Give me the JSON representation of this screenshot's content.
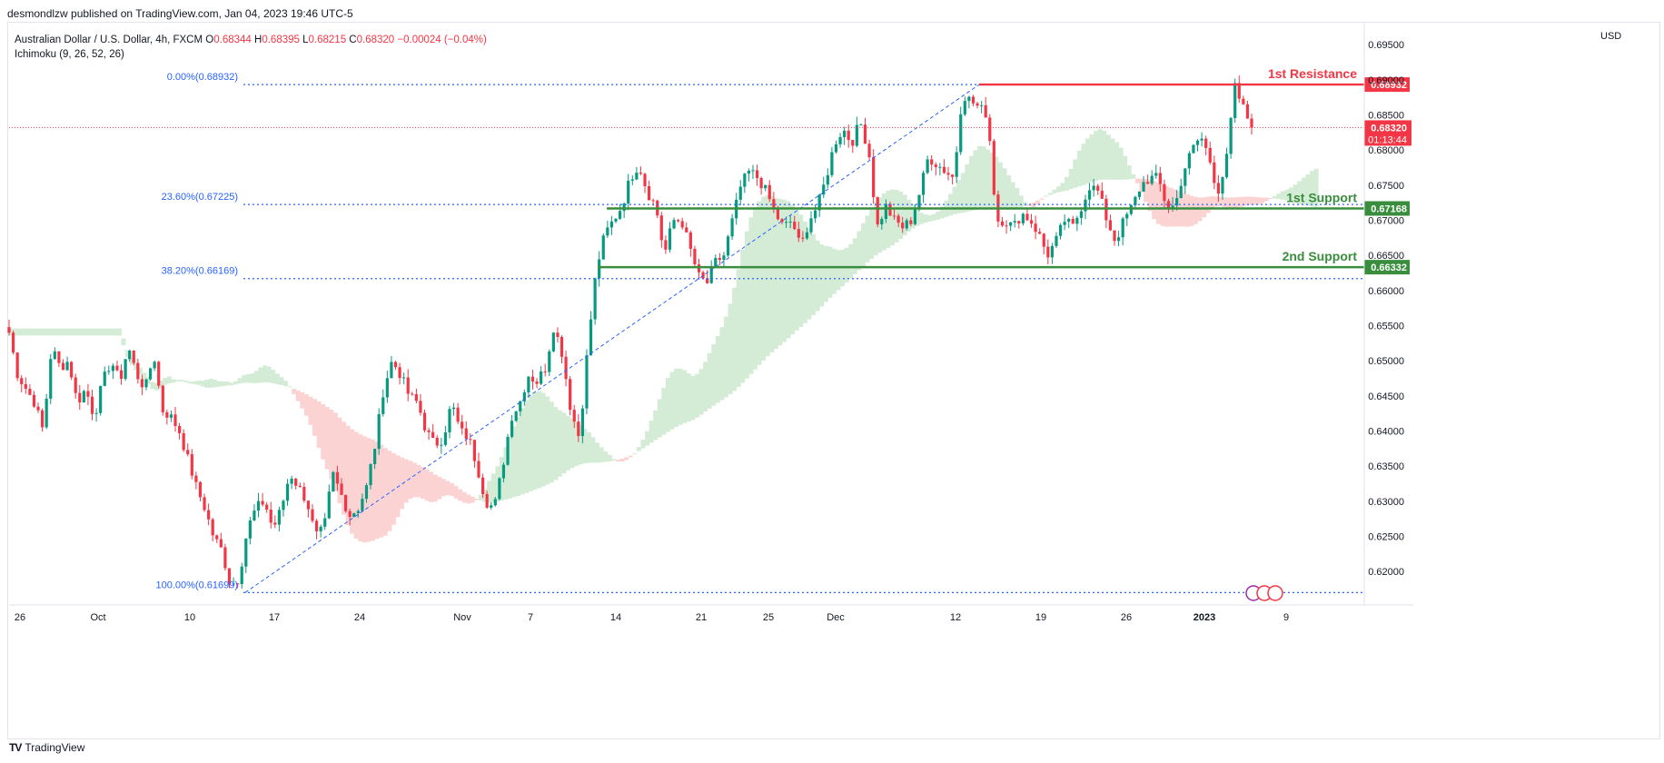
{
  "header": {
    "published": "desmondlzw published on TradingView.com, Jan 04, 2023 19:46 UTC-5"
  },
  "legend": {
    "symbol": "Australian Dollar / U.S. Dollar, 4h, FXCM",
    "o_label": "O",
    "o_value": "0.68344",
    "h_label": "H",
    "h_value": "0.68395",
    "l_label": "L",
    "l_value": "0.68215",
    "c_label": "C",
    "c_value": "0.68320",
    "change": "−0.00024 (−0.04%)",
    "indicator": "Ichimoku (9, 26, 52, 26)"
  },
  "currency": "USD",
  "brand": {
    "logo": "TV",
    "name": "TradingView"
  },
  "colors": {
    "up": "#089981",
    "down": "#f23645",
    "cloud_bull": "#d4ecd6",
    "cloud_bear": "#fcd3d3",
    "fib": "#2962ff",
    "support": "#388e3c",
    "resistance": "#f23645"
  },
  "chart_data": {
    "type": "candlestick",
    "title": "",
    "xlabel": "",
    "ylabel": "",
    "ylim": [
      0.616,
      0.698
    ],
    "grid": false,
    "y_ticks": [
      "0.69500",
      "0.69000",
      "0.68500",
      "0.68000",
      "0.67500",
      "0.67000",
      "0.66500",
      "0.66000",
      "0.65500",
      "0.65000",
      "0.64500",
      "0.64000",
      "0.63500",
      "0.63000",
      "0.62500",
      "0.62000"
    ],
    "x_ticks": [
      "26",
      "Oct",
      "10",
      "17",
      "24",
      "Nov",
      "7",
      "14",
      "21",
      "25",
      "Dec",
      "12",
      "19",
      "26",
      "2023",
      "9"
    ],
    "price_path": [
      0.654,
      0.648,
      0.646,
      0.644,
      0.64,
      0.652,
      0.649,
      0.65,
      0.644,
      0.646,
      0.642,
      0.647,
      0.65,
      0.647,
      0.652,
      0.648,
      0.646,
      0.651,
      0.643,
      0.642,
      0.64,
      0.636,
      0.632,
      0.629,
      0.625,
      0.623,
      0.618,
      0.619,
      0.626,
      0.629,
      0.63,
      0.626,
      0.629,
      0.634,
      0.632,
      0.63,
      0.625,
      0.626,
      0.634,
      0.631,
      0.628,
      0.629,
      0.632,
      0.638,
      0.646,
      0.65,
      0.648,
      0.645,
      0.644,
      0.64,
      0.638,
      0.639,
      0.644,
      0.64,
      0.639,
      0.635,
      0.63,
      0.629,
      0.635,
      0.642,
      0.644,
      0.648,
      0.647,
      0.649,
      0.655,
      0.651,
      0.643,
      0.639,
      0.652,
      0.663,
      0.668,
      0.67,
      0.672,
      0.676,
      0.678,
      0.674,
      0.672,
      0.665,
      0.67,
      0.67,
      0.666,
      0.662,
      0.661,
      0.664,
      0.665,
      0.67,
      0.675,
      0.677,
      0.676,
      0.674,
      0.671,
      0.669,
      0.67,
      0.666,
      0.67,
      0.672,
      0.676,
      0.681,
      0.683,
      0.681,
      0.684,
      0.68,
      0.669,
      0.672,
      0.67,
      0.669,
      0.67,
      0.674,
      0.679,
      0.678,
      0.677,
      0.676,
      0.688,
      0.687,
      0.686,
      0.685,
      0.67,
      0.67,
      0.669,
      0.671,
      0.67,
      0.668,
      0.665,
      0.667,
      0.67,
      0.669,
      0.672,
      0.675,
      0.674,
      0.67,
      0.667,
      0.67,
      0.672,
      0.675,
      0.676,
      0.676,
      0.672,
      0.672,
      0.677,
      0.68,
      0.682,
      0.679,
      0.674,
      0.678,
      0.689,
      0.686,
      0.6832
    ],
    "fib_levels": [
      {
        "label": "0.00%(0.68932)",
        "value": 0.68932
      },
      {
        "label": "23.60%(0.67225)",
        "value": 0.67225
      },
      {
        "label": "38.20%(0.66169)",
        "value": 0.66169
      },
      {
        "label": "100.00%(0.61699)",
        "value": 0.61699
      }
    ],
    "levels": [
      {
        "name": "1st Resistance",
        "value": 0.68932,
        "label": "0.68932",
        "kind": "resistance"
      },
      {
        "name": "1st Support",
        "value": 0.67168,
        "label": "0.67168",
        "kind": "support"
      },
      {
        "name": "2nd Support",
        "value": 0.66332,
        "label": "0.66332",
        "kind": "support"
      }
    ],
    "last_price": {
      "value": 0.6832,
      "label": "0.68320",
      "countdown": "01:13:44"
    }
  }
}
